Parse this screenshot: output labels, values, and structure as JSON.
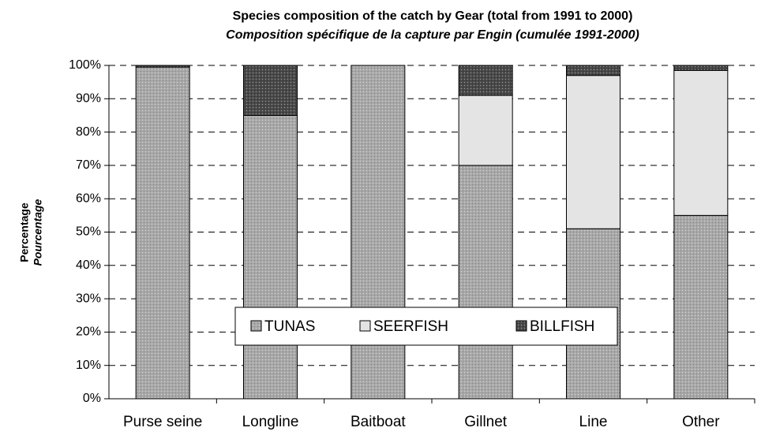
{
  "chart_data": {
    "type": "stacked_bar",
    "title": "Species composition of the catch by Gear (total from 1991 to 2000)",
    "subtitle": "Composition spécifique de la capture par Engin (cumulée 1991-2000)",
    "y_label": "Percentage",
    "y_label_alt": "Pourcentage",
    "categories": [
      "Purse seine",
      "Longline",
      "Baitboat",
      "Gillnet",
      "Line",
      "Other"
    ],
    "series": [
      {
        "name": "TUNAS",
        "color": "#a8a8a8",
        "values": [
          99.5,
          85,
          100,
          70,
          51,
          55
        ]
      },
      {
        "name": "SEERFISH",
        "color": "#e4e4e4",
        "values": [
          0,
          0,
          0,
          21,
          46,
          43.5
        ]
      },
      {
        "name": "BILLFISH",
        "color": "#4a4a4a",
        "values": [
          0.5,
          15,
          0,
          9,
          3,
          1.5
        ]
      }
    ],
    "ylim": [
      0,
      100
    ],
    "yticks": [
      {
        "value": 0,
        "label": "0%"
      },
      {
        "value": 10,
        "label": "10%"
      },
      {
        "value": 20,
        "label": "20%"
      },
      {
        "value": 30,
        "label": "30%"
      },
      {
        "value": 40,
        "label": "40%"
      },
      {
        "value": 50,
        "label": "50%"
      },
      {
        "value": 60,
        "label": "60%"
      },
      {
        "value": 70,
        "label": "70%"
      },
      {
        "value": 80,
        "label": "80%"
      },
      {
        "value": 90,
        "label": "90%"
      },
      {
        "value": 100,
        "label": "100%"
      }
    ],
    "grid": true,
    "legend": "bottom-center"
  }
}
